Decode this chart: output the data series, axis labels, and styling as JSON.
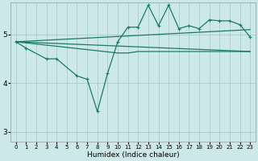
{
  "bg_color": "#cce8e8",
  "grid_color": "#aacccc",
  "line_color": "#1a7a6a",
  "xlabel": "Humidex (Indice chaleur)",
  "ylim": [
    2.8,
    5.65
  ],
  "xlim": [
    -0.5,
    23.5
  ],
  "yticks": [
    3,
    4,
    5
  ],
  "xticks": [
    0,
    1,
    2,
    3,
    4,
    5,
    6,
    7,
    8,
    9,
    10,
    11,
    12,
    13,
    14,
    15,
    16,
    17,
    18,
    19,
    20,
    21,
    22,
    23
  ],
  "ref_line1": [
    [
      0,
      23
    ],
    [
      4.85,
      5.1
    ]
  ],
  "ref_line2": [
    [
      0,
      23
    ],
    [
      4.85,
      4.65
    ]
  ],
  "flat_line_x": [
    0,
    10,
    11,
    12,
    13,
    14,
    15,
    16,
    17,
    18,
    19,
    20,
    21,
    22,
    23
  ],
  "flat_line_y": [
    4.85,
    4.62,
    4.62,
    4.65,
    4.65,
    4.65,
    4.65,
    4.65,
    4.65,
    4.65,
    4.65,
    4.65,
    4.65,
    4.65,
    4.65
  ],
  "main_x": [
    0,
    1,
    3,
    4,
    6,
    7,
    8,
    9,
    10,
    11,
    12,
    13,
    14,
    15,
    16,
    17,
    18,
    19,
    20,
    21,
    22,
    23
  ],
  "main_y": [
    4.85,
    4.72,
    4.5,
    4.5,
    4.15,
    4.08,
    3.42,
    4.2,
    4.85,
    5.15,
    5.15,
    5.6,
    5.18,
    5.6,
    5.12,
    5.18,
    5.12,
    5.3,
    5.28,
    5.28,
    5.2,
    4.95
  ]
}
